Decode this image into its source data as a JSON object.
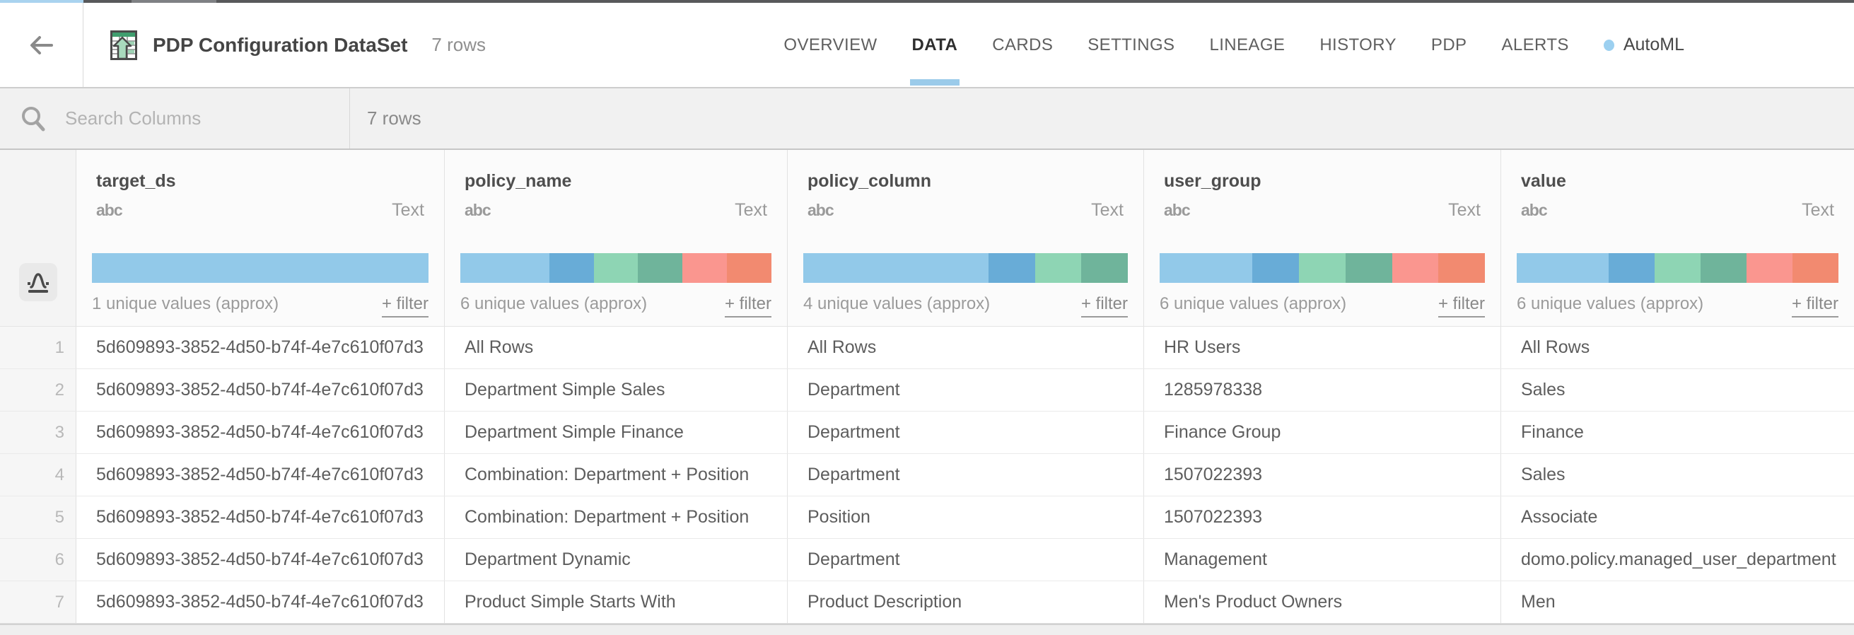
{
  "header": {
    "title": "PDP Configuration DataSet",
    "row_count": "7 rows",
    "tabs": [
      {
        "label": "OVERVIEW",
        "active": false
      },
      {
        "label": "DATA",
        "active": true
      },
      {
        "label": "CARDS",
        "active": false
      },
      {
        "label": "SETTINGS",
        "active": false
      },
      {
        "label": "LINEAGE",
        "active": false
      },
      {
        "label": "HISTORY",
        "active": false
      },
      {
        "label": "PDP",
        "active": false
      },
      {
        "label": "ALERTS",
        "active": false
      }
    ],
    "automl_label": "AutoML"
  },
  "search": {
    "placeholder": "Search Columns",
    "row_count": "7 rows"
  },
  "colors": {
    "accent_blue": "#9bcbea",
    "hist_blue": "#92c9e9",
    "hist_medblue": "#68acd7",
    "hist_mint": "#8ed5b4",
    "hist_green": "#6fb49b",
    "hist_salmon": "#fa968f",
    "hist_orange": "#f28a70"
  },
  "table": {
    "columns": [
      {
        "name": "target_ds",
        "type_icon": "abc",
        "type": "Text",
        "unique": "1 unique values (approx)",
        "filter": "+ filter",
        "histogram": [
          {
            "c": "#92c9e9",
            "w": 7
          }
        ]
      },
      {
        "name": "policy_name",
        "type_icon": "abc",
        "type": "Text",
        "unique": "6 unique values (approx)",
        "filter": "+ filter",
        "histogram": [
          {
            "c": "#92c9e9",
            "w": 2
          },
          {
            "c": "#68acd7",
            "w": 1
          },
          {
            "c": "#8ed5b4",
            "w": 1
          },
          {
            "c": "#6fb49b",
            "w": 1
          },
          {
            "c": "#fa968f",
            "w": 1
          },
          {
            "c": "#f28a70",
            "w": 1
          }
        ]
      },
      {
        "name": "policy_column",
        "type_icon": "abc",
        "type": "Text",
        "unique": "4 unique values (approx)",
        "filter": "+ filter",
        "histogram": [
          {
            "c": "#92c9e9",
            "w": 4
          },
          {
            "c": "#68acd7",
            "w": 1
          },
          {
            "c": "#8ed5b4",
            "w": 1
          },
          {
            "c": "#6fb49b",
            "w": 1
          }
        ]
      },
      {
        "name": "user_group",
        "type_icon": "abc",
        "type": "Text",
        "unique": "6 unique values (approx)",
        "filter": "+ filter",
        "histogram": [
          {
            "c": "#92c9e9",
            "w": 2
          },
          {
            "c": "#68acd7",
            "w": 1
          },
          {
            "c": "#8ed5b4",
            "w": 1
          },
          {
            "c": "#6fb49b",
            "w": 1
          },
          {
            "c": "#fa968f",
            "w": 1
          },
          {
            "c": "#f28a70",
            "w": 1
          }
        ]
      },
      {
        "name": "value",
        "type_icon": "abc",
        "type": "Text",
        "unique": "6 unique values (approx)",
        "filter": "+ filter",
        "histogram": [
          {
            "c": "#92c9e9",
            "w": 2
          },
          {
            "c": "#68acd7",
            "w": 1
          },
          {
            "c": "#8ed5b4",
            "w": 1
          },
          {
            "c": "#6fb49b",
            "w": 1
          },
          {
            "c": "#fa968f",
            "w": 1
          },
          {
            "c": "#f28a70",
            "w": 1
          }
        ]
      }
    ],
    "rows": [
      {
        "num": "1",
        "cells": [
          "5d609893-3852-4d50-b74f-4e7c610f07d3",
          "All Rows",
          "All Rows",
          "HR Users",
          "All Rows"
        ]
      },
      {
        "num": "2",
        "cells": [
          "5d609893-3852-4d50-b74f-4e7c610f07d3",
          "Department Simple Sales",
          "Department",
          "1285978338",
          "Sales"
        ]
      },
      {
        "num": "3",
        "cells": [
          "5d609893-3852-4d50-b74f-4e7c610f07d3",
          "Department Simple Finance",
          "Department",
          "Finance Group",
          "Finance"
        ]
      },
      {
        "num": "4",
        "cells": [
          "5d609893-3852-4d50-b74f-4e7c610f07d3",
          "Combination: Department + Position",
          "Department",
          "1507022393",
          "Sales"
        ]
      },
      {
        "num": "5",
        "cells": [
          "5d609893-3852-4d50-b74f-4e7c610f07d3",
          "Combination: Department + Position",
          "Position",
          "1507022393",
          "Associate"
        ]
      },
      {
        "num": "6",
        "cells": [
          "5d609893-3852-4d50-b74f-4e7c610f07d3",
          "Department Dynamic",
          "Department",
          "Management",
          "domo.policy.managed_user_department"
        ]
      },
      {
        "num": "7",
        "cells": [
          "5d609893-3852-4d50-b74f-4e7c610f07d3",
          "Product Simple Starts With",
          "Product Description",
          "Men's Product Owners",
          "Men"
        ]
      }
    ]
  }
}
